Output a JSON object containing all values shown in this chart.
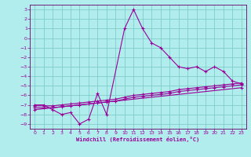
{
  "xlabel": "Windchill (Refroidissement éolien,°C)",
  "bg_color": "#b2eded",
  "grid_color": "#80cccc",
  "line_color": "#990099",
  "spine_color": "#660066",
  "xlim": [
    -0.5,
    23.5
  ],
  "ylim": [
    -9.5,
    3.5
  ],
  "xticks": [
    0,
    1,
    2,
    3,
    4,
    5,
    6,
    7,
    8,
    9,
    10,
    11,
    12,
    13,
    14,
    15,
    16,
    17,
    18,
    19,
    20,
    21,
    22,
    23
  ],
  "yticks": [
    3,
    2,
    1,
    0,
    -1,
    -2,
    -3,
    -4,
    -5,
    -6,
    -7,
    -8,
    -9
  ],
  "line1_x": [
    0,
    1,
    2,
    3,
    4,
    5,
    6,
    7,
    8,
    10,
    11,
    12,
    13,
    14,
    15,
    16,
    17,
    18,
    19,
    20,
    21,
    22,
    23
  ],
  "line1_y": [
    -7,
    -7,
    -7.5,
    -8,
    -7.8,
    -9,
    -8.5,
    -5.8,
    -8,
    1,
    3,
    1,
    -0.5,
    -1,
    -2,
    -3,
    -3.2,
    -3,
    -3.5,
    -3,
    -3.5,
    -4.5,
    -4.8
  ],
  "line2_x": [
    0,
    1,
    2,
    3,
    4,
    5,
    6,
    7,
    8,
    9,
    10,
    11,
    12,
    13,
    14,
    15,
    16,
    17,
    18,
    19,
    20,
    21,
    22,
    23
  ],
  "line2_y": [
    -7.1,
    -7.1,
    -7.1,
    -7.0,
    -6.9,
    -6.8,
    -6.7,
    -6.6,
    -6.5,
    -6.4,
    -6.2,
    -6.0,
    -5.9,
    -5.8,
    -5.7,
    -5.6,
    -5.4,
    -5.3,
    -5.2,
    -5.1,
    -5.0,
    -4.9,
    -4.8,
    -4.7
  ],
  "line3_x": [
    0,
    1,
    2,
    3,
    4,
    5,
    6,
    7,
    8,
    9,
    10,
    11,
    12,
    13,
    14,
    15,
    16,
    17,
    18,
    19,
    20,
    21,
    22,
    23
  ],
  "line3_y": [
    -7.3,
    -7.3,
    -7.3,
    -7.2,
    -7.1,
    -7.0,
    -6.9,
    -6.8,
    -6.7,
    -6.6,
    -6.4,
    -6.2,
    -6.1,
    -6.0,
    -5.9,
    -5.8,
    -5.6,
    -5.5,
    -5.4,
    -5.3,
    -5.2,
    -5.1,
    -5.0,
    -4.9
  ],
  "line4_x": [
    0,
    23
  ],
  "line4_y": [
    -7.5,
    -5.2
  ]
}
